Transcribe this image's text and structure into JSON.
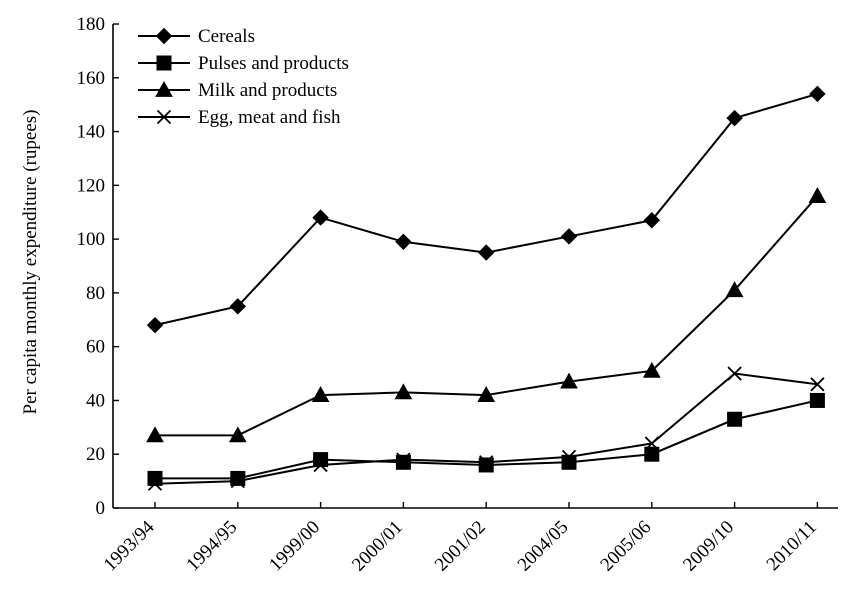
{
  "chart_data": {
    "type": "line",
    "title": "",
    "xlabel": "",
    "ylabel": "Per capita monthly expenditure (rupees)",
    "ylim": [
      0,
      180
    ],
    "yticks": [
      0,
      20,
      40,
      60,
      80,
      100,
      120,
      140,
      160,
      180
    ],
    "categories": [
      "1993/94",
      "1994/95",
      "1999/00",
      "2000/01",
      "2001/02",
      "2004/05",
      "2005/06",
      "2009/10",
      "2010/11"
    ],
    "legend_position": "top-left",
    "grid": false,
    "series": [
      {
        "name": "Cereals",
        "marker": "diamond",
        "values": [
          68,
          75,
          108,
          99,
          95,
          101,
          107,
          145,
          154
        ]
      },
      {
        "name": "Pulses and products",
        "marker": "square",
        "values": [
          11,
          11,
          18,
          17,
          16,
          17,
          20,
          33,
          40
        ]
      },
      {
        "name": "Milk and products",
        "marker": "triangle",
        "values": [
          27,
          27,
          42,
          43,
          42,
          47,
          51,
          81,
          116
        ]
      },
      {
        "name": "Egg, meat and fish",
        "marker": "x",
        "values": [
          9,
          10,
          16,
          18,
          17,
          19,
          24,
          50,
          46
        ]
      }
    ]
  }
}
